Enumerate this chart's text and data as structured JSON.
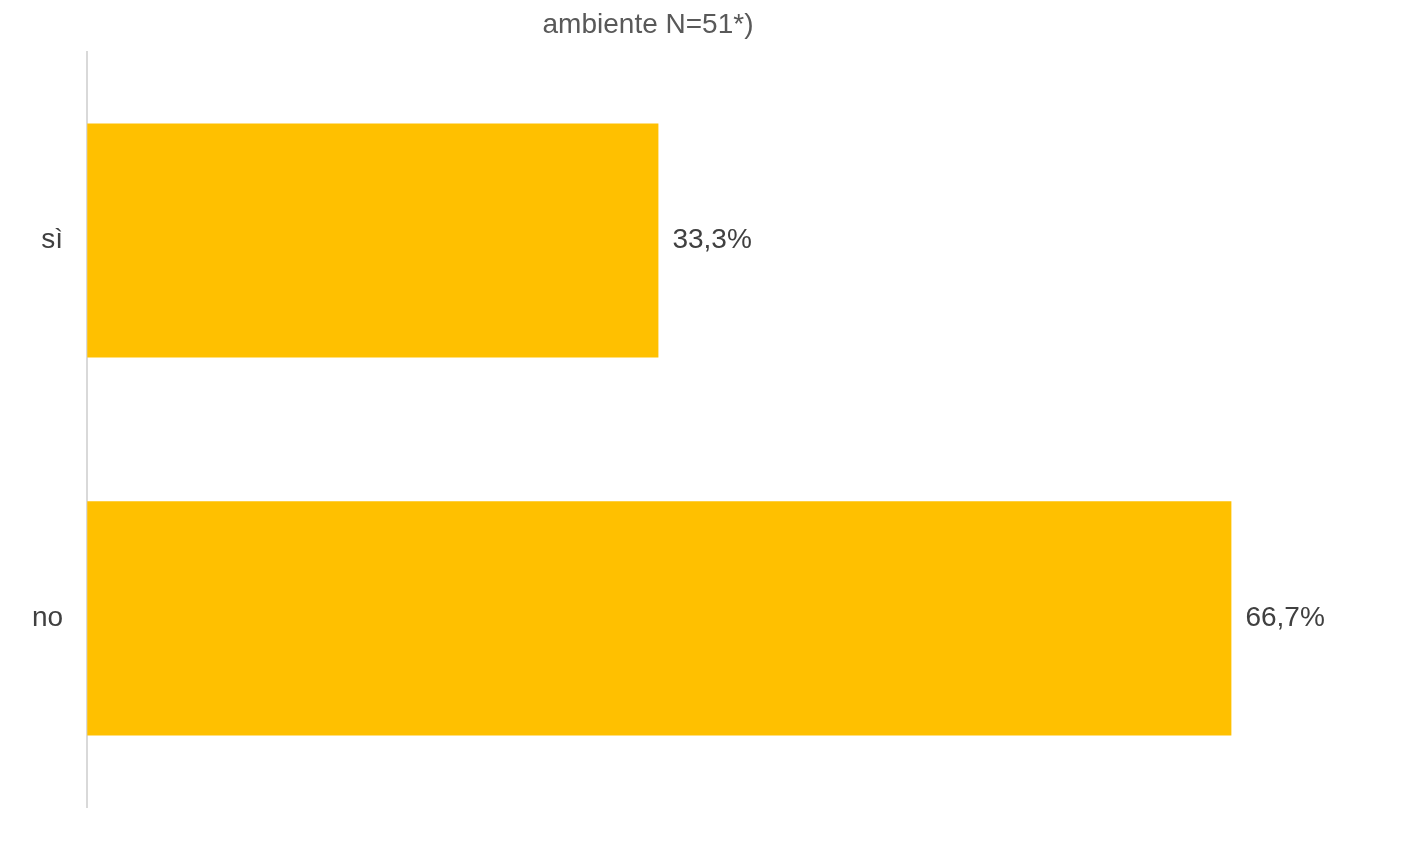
{
  "chart_data": {
    "type": "bar",
    "orientation": "horizontal",
    "title": "ambiente N=51*)",
    "categories": [
      "sì",
      "no"
    ],
    "values": [
      33.3,
      66.7
    ],
    "value_labels": [
      "33,3%",
      "66,7%"
    ],
    "color": "#ffc000",
    "tick_labels": "y",
    "grid": false,
    "legend": false
  }
}
